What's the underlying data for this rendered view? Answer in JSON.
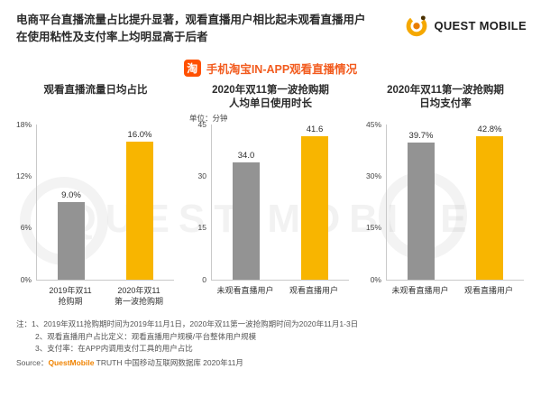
{
  "header": {
    "title": "电商平台直播流量占比提升显著，观看直播用户相比起未观看直播用户在使用粘性及支付率上均明显高于后者",
    "logo_text": "QUEST MOBILE"
  },
  "section": {
    "icon_label": "淘",
    "title": "手机淘宝IN-APP观看直播情况"
  },
  "chart_data": [
    {
      "type": "bar",
      "title_lines": [
        "观看直播流量日均占比"
      ],
      "unit": "",
      "categories": [
        [
          "2019年双11",
          "抢购期"
        ],
        [
          "2020年双11",
          "第一波抢购期"
        ]
      ],
      "values": [
        9.0,
        16.0
      ],
      "value_labels": [
        "9.0%",
        "16.0%"
      ],
      "ylim": [
        0,
        18
      ],
      "yticks": [
        "18%",
        "12%",
        "6%",
        "0%"
      ]
    },
    {
      "type": "bar",
      "title_lines": [
        "2020年双11第一波抢购期",
        "人均单日使用时长"
      ],
      "unit": "单位：分钟",
      "categories": [
        [
          "未观看直播用户"
        ],
        [
          "观看直播用户"
        ]
      ],
      "values": [
        34.0,
        41.6
      ],
      "value_labels": [
        "34.0",
        "41.6"
      ],
      "ylim": [
        0,
        45
      ],
      "yticks": [
        "45",
        "30",
        "15",
        "0"
      ]
    },
    {
      "type": "bar",
      "title_lines": [
        "2020年双11第一波抢购期",
        "日均支付率"
      ],
      "unit": "",
      "categories": [
        [
          "未观看直播用户"
        ],
        [
          "观看直播用户"
        ]
      ],
      "values": [
        39.7,
        42.8
      ],
      "value_labels": [
        "39.7%",
        "42.8%"
      ],
      "ylim": [
        0,
        45
      ],
      "yticks": [
        "45%",
        "30%",
        "15%",
        "0%"
      ]
    }
  ],
  "notes": [
    "注：1、2019年双11抢购期时间为2019年11月1日，2020年双11第一波抢购期时间为2020年11月1-3日",
    "2、观看直播用户占比定义：观看直播用户规模/平台整体用户规模",
    "3、支付率：在APP内调用支付工具的用户占比"
  ],
  "source": {
    "prefix": "Source：",
    "brand": "QuestMobile",
    "suffix": " TRUTH 中国移动互联网数据库 2020年11月"
  },
  "colors": {
    "series": [
      "#939393",
      "#f8b500"
    ],
    "accent": "#f08300",
    "section_red": "#f25b1e",
    "tao_orange": "#ff5000"
  },
  "watermark": {
    "text": "QUEST MOBILE"
  }
}
